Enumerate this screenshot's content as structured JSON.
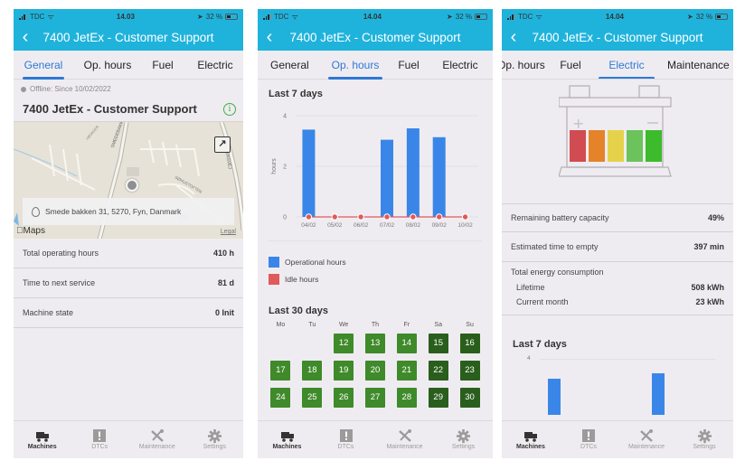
{
  "screens": [
    {
      "status": {
        "carrier": "TDC",
        "time": "14.03",
        "battery": "32 %"
      },
      "header": {
        "title": "7400 JetEx  - Customer Support",
        "back_icon": "chevron-left-icon"
      },
      "tabs": [
        {
          "label": "General",
          "active": true
        },
        {
          "label": "Op. hours",
          "active": false
        },
        {
          "label": "Fuel",
          "active": false
        },
        {
          "label": "Electric",
          "active": false
        }
      ],
      "general": {
        "offline_text": "Offline: Since 10/02/2022",
        "machine_title": "7400 JetEx  - Customer Support",
        "info_icon": "i",
        "map": {
          "address": "Smede bakken 31, 5270, Fyn, Danmark",
          "provider": "Maps",
          "legal": "Legal",
          "expand_icon": "↗",
          "street_labels": [
            "SMEDEBAKKE",
            "SØHUSTOFTEN",
            "FENSVEJ",
            "HØJAGER"
          ]
        },
        "rows": [
          {
            "label": "Total operating hours",
            "value": "410 h"
          },
          {
            "label": "Time to next service",
            "value": "81 d"
          },
          {
            "label": "Machine state",
            "value": "0 Init"
          }
        ]
      }
    },
    {
      "status": {
        "carrier": "TDC",
        "time": "14.04",
        "battery": "32 %"
      },
      "header": {
        "title": "7400 JetEx  - Customer Support"
      },
      "tabs": [
        {
          "label": "General",
          "active": false
        },
        {
          "label": "Op. hours",
          "active": true
        },
        {
          "label": "Fuel",
          "active": false
        },
        {
          "label": "Electric",
          "active": false
        }
      ],
      "ophours": {
        "last7_title": "Last 7 days",
        "legend": [
          {
            "label": "Operational hours",
            "color": "#3a86e8"
          },
          {
            "label": "Idle hours",
            "color": "#e05a5a"
          }
        ],
        "last30_title": "Last 30 days",
        "weekdays": [
          "Mo",
          "Tu",
          "We",
          "Th",
          "Fr",
          "Sa",
          "Su"
        ],
        "calendar": [
          [
            null,
            null,
            {
              "d": "12",
              "shade": "light"
            },
            {
              "d": "13",
              "shade": "light"
            },
            {
              "d": "14",
              "shade": "light"
            },
            {
              "d": "15",
              "shade": "dark"
            },
            {
              "d": "16",
              "shade": "dark"
            }
          ],
          [
            {
              "d": "17",
              "shade": "light"
            },
            {
              "d": "18",
              "shade": "light"
            },
            {
              "d": "19",
              "shade": "light"
            },
            {
              "d": "20",
              "shade": "light"
            },
            {
              "d": "21",
              "shade": "light"
            },
            {
              "d": "22",
              "shade": "dark"
            },
            {
              "d": "23",
              "shade": "dark"
            }
          ],
          [
            {
              "d": "24",
              "shade": "light"
            },
            {
              "d": "25",
              "shade": "light"
            },
            {
              "d": "26",
              "shade": "light"
            },
            {
              "d": "27",
              "shade": "light"
            },
            {
              "d": "28",
              "shade": "light"
            },
            {
              "d": "29",
              "shade": "dark"
            },
            {
              "d": "30",
              "shade": "dark"
            }
          ]
        ],
        "calendar_colors": {
          "light": "#3f8a2a",
          "dark": "#2a5e1c"
        }
      }
    },
    {
      "status": {
        "carrier": "TDC",
        "time": "14.04",
        "battery": "32 %"
      },
      "header": {
        "title": "7400 JetEx  - Customer Support"
      },
      "tabs": [
        {
          "label": "Op. hours",
          "active": false
        },
        {
          "label": "Fuel",
          "active": false
        },
        {
          "label": "Electric",
          "active": true
        },
        {
          "label": "Maintenance",
          "active": false
        }
      ],
      "electric": {
        "battery_cells": [
          "#d14b52",
          "#e5832a",
          "#e6d24a",
          "#6cc35c",
          "#3dbb2c"
        ],
        "rows": [
          {
            "label": "Remaining battery capacity",
            "value": "49%"
          },
          {
            "label": "Estimated time to empty",
            "value": "397 min"
          }
        ],
        "energy": {
          "title": "Total energy consumption",
          "items": [
            {
              "label": "Lifetime",
              "value": "508 kWh"
            },
            {
              "label": "Current month",
              "value": "23 kWh"
            }
          ]
        },
        "last7_title": "Last 7 days",
        "chart_tick": "4"
      }
    }
  ],
  "chart_data": {
    "type": "bar",
    "title": "Last 7 days",
    "xlabel": "",
    "ylabel": "hours",
    "categories": [
      "04/02",
      "05/02",
      "06/02",
      "07/02",
      "08/02",
      "09/02",
      "10/02"
    ],
    "series": [
      {
        "name": "Operational hours",
        "color": "#3a86e8",
        "values": [
          3.45,
          0,
          0,
          3.05,
          3.5,
          3.15,
          0
        ]
      },
      {
        "name": "Idle hours",
        "color": "#e05a5a",
        "type": "line",
        "values": [
          0,
          0,
          0,
          0,
          0,
          0,
          0
        ]
      }
    ],
    "yticks": [
      "0",
      "2",
      "4"
    ],
    "ylim": [
      0,
      4
    ],
    "grid": true,
    "legend_position": "bottom"
  },
  "bottom_nav": [
    {
      "label": "Machines",
      "icon": "truck-icon",
      "active": true
    },
    {
      "label": "DTCs",
      "icon": "alert-icon",
      "active": false
    },
    {
      "label": "Maintenance",
      "icon": "tools-icon",
      "active": false
    },
    {
      "label": "Settings",
      "icon": "gear-icon",
      "active": false
    }
  ]
}
